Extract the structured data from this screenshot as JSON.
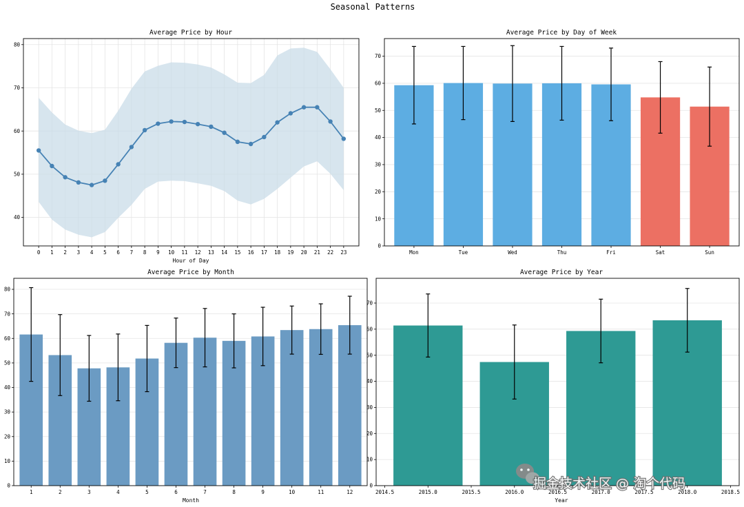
{
  "figure": {
    "title": "Seasonal Patterns"
  },
  "colors": {
    "line": "#4682b4",
    "band": "#c9dce8",
    "weekday": "#5dade2",
    "weekend": "#ec7063",
    "month": "#6b9bc3",
    "year": "#2e9a94",
    "grid": "#e4e4e4",
    "err": "#000000"
  },
  "watermark": {
    "icon": "wechat-icon",
    "text": "掘金技术社区 @ 淘个代码"
  },
  "chart_data": [
    {
      "type": "line",
      "title": "Average Price by Hour",
      "xlabel": "Hour of Day",
      "ylabel": "",
      "x": [
        0,
        1,
        2,
        3,
        4,
        5,
        6,
        7,
        8,
        9,
        10,
        11,
        12,
        13,
        14,
        15,
        16,
        17,
        18,
        19,
        20,
        21,
        22,
        23
      ],
      "values": [
        55.5,
        51.9,
        49.3,
        48.1,
        47.5,
        48.5,
        52.3,
        56.3,
        60.2,
        61.7,
        62.2,
        62.1,
        61.6,
        61.0,
        59.6,
        57.5,
        57.0,
        58.6,
        62.0,
        64.1,
        65.5,
        65.5,
        62.2,
        58.2
      ],
      "upper": [
        67.7,
        64.3,
        61.5,
        60.1,
        59.5,
        60.3,
        64.7,
        69.8,
        73.8,
        75.1,
        75.9,
        75.8,
        75.4,
        74.7,
        73.1,
        71.2,
        71.1,
        73.0,
        77.5,
        79.1,
        79.3,
        78.3,
        74.3,
        70.0
      ],
      "lower": [
        43.6,
        39.5,
        37.2,
        36.0,
        35.4,
        36.6,
        39.9,
        42.9,
        46.6,
        48.3,
        48.5,
        48.4,
        47.9,
        47.3,
        46.1,
        43.9,
        43.0,
        44.3,
        46.6,
        49.2,
        51.8,
        53.0,
        50.1,
        46.3
      ],
      "xlim": [
        -1.15,
        24.15
      ],
      "ylim": [
        33.4,
        81.4
      ],
      "yticks": [
        40,
        50,
        60,
        70,
        80
      ],
      "xtick_labels": [
        "0",
        "1",
        "2",
        "3",
        "4",
        "5",
        "6",
        "7",
        "8",
        "9",
        "10",
        "11",
        "12",
        "13",
        "14",
        "15",
        "16",
        "17",
        "18",
        "19",
        "20",
        "21",
        "22",
        "23"
      ],
      "grid": true
    },
    {
      "type": "bar",
      "title": "Average Price by Day of Week",
      "xlabel": "",
      "ylabel": "",
      "categories": [
        "Mon",
        "Tue",
        "Wed",
        "Thu",
        "Fri",
        "Sat",
        "Sun"
      ],
      "values": [
        59.3,
        60.1,
        59.9,
        60.0,
        59.6,
        54.8,
        51.4
      ],
      "errors": [
        14.3,
        13.5,
        14.0,
        13.6,
        13.4,
        13.2,
        14.6
      ],
      "weekend": [
        false,
        false,
        false,
        false,
        false,
        true,
        true
      ],
      "ylim": [
        0,
        76.5
      ],
      "yticks": [
        0,
        10,
        20,
        30,
        40,
        50,
        60,
        70
      ],
      "grid": true
    },
    {
      "type": "bar",
      "title": "Average Price by Month",
      "xlabel": "Month",
      "ylabel": "",
      "categories": [
        "1",
        "2",
        "3",
        "4",
        "5",
        "6",
        "7",
        "8",
        "9",
        "10",
        "11",
        "12"
      ],
      "values": [
        61.6,
        53.2,
        47.8,
        48.2,
        51.8,
        58.2,
        60.3,
        59.0,
        60.8,
        63.4,
        63.8,
        65.4
      ],
      "errors": [
        19.1,
        16.5,
        13.4,
        13.6,
        13.5,
        10.1,
        11.9,
        11.0,
        11.9,
        9.8,
        10.3,
        11.8
      ],
      "ylim": [
        0,
        84.5
      ],
      "yticks": [
        0,
        10,
        20,
        30,
        40,
        50,
        60,
        70,
        80
      ],
      "grid": true
    },
    {
      "type": "bar",
      "title": "Average Price by Year",
      "xlabel": "Year",
      "ylabel": "",
      "x": [
        2015,
        2016,
        2017,
        2018
      ],
      "values": [
        61.4,
        47.4,
        59.3,
        63.4
      ],
      "errors": [
        12.1,
        14.2,
        12.2,
        12.2
      ],
      "bar_width": 0.8,
      "xlim": [
        2014.4,
        2018.6
      ],
      "ylim": [
        0,
        79.5
      ],
      "xticks": [
        2014.5,
        2015.0,
        2015.5,
        2016.0,
        2016.5,
        2017.0,
        2017.5,
        2018.0,
        2018.5
      ],
      "xtick_labels": [
        "2014.5",
        "2015.0",
        "2015.5",
        "2016.0",
        "2016.5",
        "2017.0",
        "2017.5",
        "2018.0",
        "2018.5"
      ],
      "yticks": [
        0,
        10,
        20,
        30,
        40,
        50,
        60,
        70
      ],
      "grid": true
    }
  ]
}
